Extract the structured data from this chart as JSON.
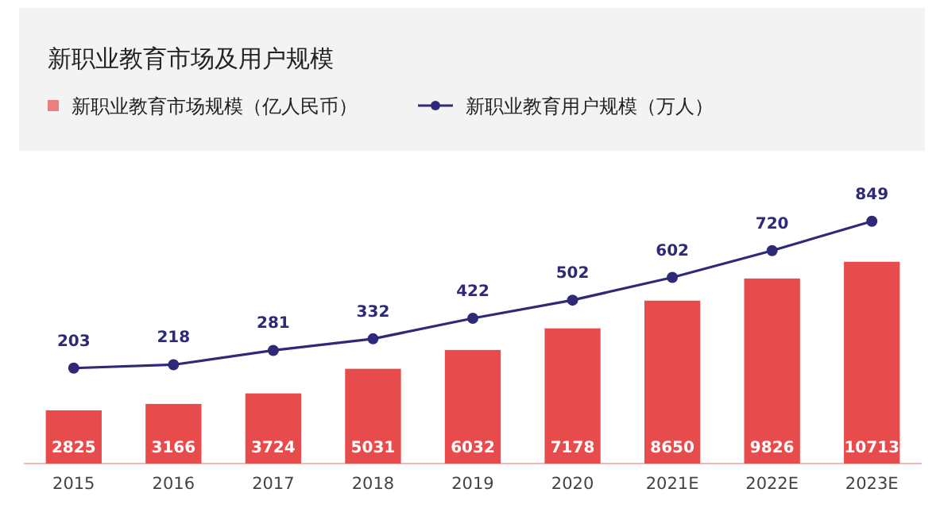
{
  "chart_data": {
    "type": "bar",
    "title": "新职业教育市场及用户规模",
    "categories": [
      "2015",
      "2016",
      "2017",
      "2018",
      "2019",
      "2020",
      "2021E",
      "2022E",
      "2023E"
    ],
    "series": [
      {
        "name": "新职业教育市场规模（亿人民币）",
        "type": "bar",
        "color": "#e84b4b",
        "values": [
          2825,
          3166,
          3724,
          5031,
          6032,
          7178,
          8650,
          9826,
          10713
        ]
      },
      {
        "name": "新职业教育用户规模（万人）",
        "type": "line",
        "axis": "y2",
        "color": "#2e2a78",
        "values": [
          203,
          218,
          281,
          332,
          422,
          502,
          602,
          720,
          849
        ]
      }
    ],
    "data_labels": true,
    "legend": "top",
    "marker": "circle",
    "tick_labels": "x"
  }
}
